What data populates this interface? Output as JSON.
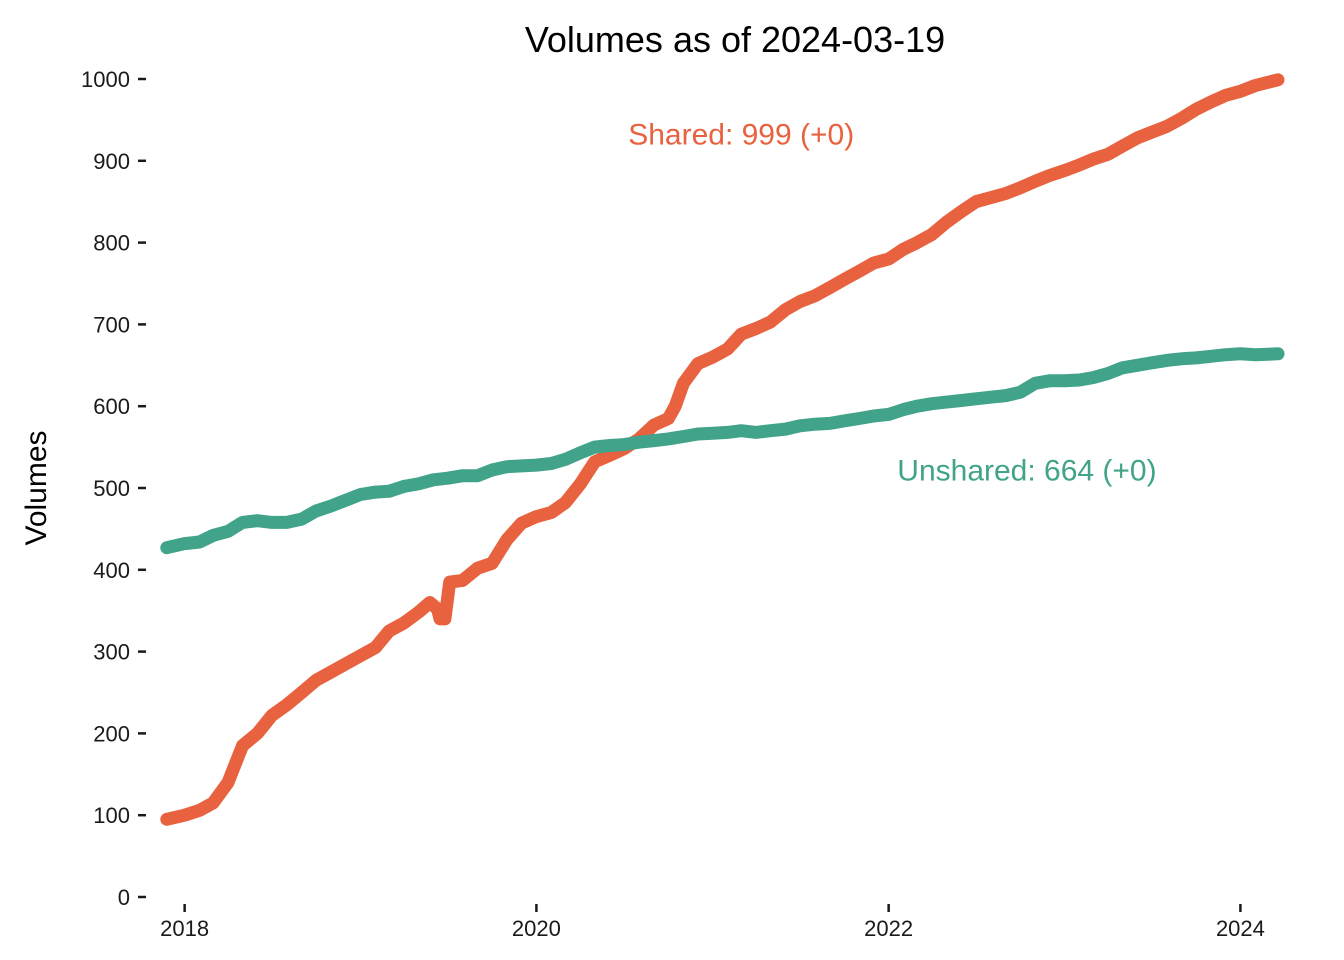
{
  "chart_data": {
    "type": "line",
    "title": "Volumes as of  2024-03-19",
    "xlabel": "",
    "ylabel": "Volumes",
    "xlim": [
      "2017-11-15",
      "2024-03-19"
    ],
    "ylim": [
      0,
      1000
    ],
    "x_ticks": [
      {
        "label": "2018",
        "date": "2018-01-01"
      },
      {
        "label": "2020",
        "date": "2020-01-01"
      },
      {
        "label": "2022",
        "date": "2022-01-01"
      },
      {
        "label": "2024",
        "date": "2024-01-01"
      }
    ],
    "y_ticks": [
      "0",
      "100",
      "200",
      "300",
      "400",
      "500",
      "600",
      "700",
      "800",
      "900",
      "1000"
    ],
    "grid": false,
    "legend": "none",
    "series": [
      {
        "name": "Shared",
        "color": "#E8623F",
        "points": [
          [
            "2017-11-25",
            95
          ],
          [
            "2018-01-01",
            100
          ],
          [
            "2018-02-01",
            106
          ],
          [
            "2018-03-01",
            115
          ],
          [
            "2018-04-01",
            140
          ],
          [
            "2018-05-01",
            185
          ],
          [
            "2018-06-01",
            200
          ],
          [
            "2018-07-01",
            222
          ],
          [
            "2018-08-01",
            235
          ],
          [
            "2018-09-01",
            250
          ],
          [
            "2018-10-01",
            265
          ],
          [
            "2018-11-01",
            275
          ],
          [
            "2018-12-01",
            285
          ],
          [
            "2019-01-01",
            295
          ],
          [
            "2019-02-01",
            305
          ],
          [
            "2019-03-01",
            325
          ],
          [
            "2019-04-01",
            335
          ],
          [
            "2019-05-01",
            348
          ],
          [
            "2019-05-25",
            360
          ],
          [
            "2019-06-10",
            352
          ],
          [
            "2019-06-15",
            340
          ],
          [
            "2019-06-25",
            340
          ],
          [
            "2019-07-05",
            385
          ],
          [
            "2019-08-01",
            387
          ],
          [
            "2019-09-01",
            402
          ],
          [
            "2019-10-01",
            408
          ],
          [
            "2019-11-01",
            437
          ],
          [
            "2019-12-01",
            457
          ],
          [
            "2020-01-01",
            465
          ],
          [
            "2020-02-01",
            470
          ],
          [
            "2020-03-01",
            482
          ],
          [
            "2020-04-01",
            505
          ],
          [
            "2020-05-01",
            532
          ],
          [
            "2020-06-01",
            540
          ],
          [
            "2020-07-01",
            548
          ],
          [
            "2020-08-01",
            560
          ],
          [
            "2020-09-01",
            577
          ],
          [
            "2020-10-01",
            585
          ],
          [
            "2020-10-15",
            600
          ],
          [
            "2020-11-01",
            628
          ],
          [
            "2020-12-01",
            652
          ],
          [
            "2021-01-01",
            660
          ],
          [
            "2021-02-01",
            670
          ],
          [
            "2021-03-01",
            688
          ],
          [
            "2021-04-01",
            695
          ],
          [
            "2021-05-01",
            703
          ],
          [
            "2021-06-01",
            718
          ],
          [
            "2021-07-01",
            728
          ],
          [
            "2021-08-01",
            735
          ],
          [
            "2021-09-01",
            745
          ],
          [
            "2021-10-01",
            755
          ],
          [
            "2021-11-01",
            765
          ],
          [
            "2021-12-01",
            775
          ],
          [
            "2022-01-01",
            780
          ],
          [
            "2022-02-01",
            792
          ],
          [
            "2022-03-01",
            800
          ],
          [
            "2022-04-01",
            810
          ],
          [
            "2022-05-01",
            825
          ],
          [
            "2022-06-01",
            838
          ],
          [
            "2022-07-01",
            850
          ],
          [
            "2022-08-01",
            855
          ],
          [
            "2022-09-01",
            860
          ],
          [
            "2022-10-01",
            867
          ],
          [
            "2022-11-01",
            875
          ],
          [
            "2022-12-01",
            882
          ],
          [
            "2023-01-01",
            888
          ],
          [
            "2023-02-01",
            895
          ],
          [
            "2023-03-01",
            902
          ],
          [
            "2023-04-01",
            908
          ],
          [
            "2023-05-01",
            918
          ],
          [
            "2023-06-01",
            928
          ],
          [
            "2023-07-01",
            935
          ],
          [
            "2023-08-01",
            942
          ],
          [
            "2023-09-01",
            952
          ],
          [
            "2023-10-01",
            963
          ],
          [
            "2023-11-01",
            972
          ],
          [
            "2023-12-01",
            980
          ],
          [
            "2024-01-01",
            985
          ],
          [
            "2024-02-01",
            992
          ],
          [
            "2024-03-19",
            999
          ]
        ]
      },
      {
        "name": "Unshared",
        "color": "#41A389",
        "points": [
          [
            "2017-11-25",
            427
          ],
          [
            "2018-01-01",
            432
          ],
          [
            "2018-02-01",
            434
          ],
          [
            "2018-03-01",
            442
          ],
          [
            "2018-04-01",
            447
          ],
          [
            "2018-05-01",
            458
          ],
          [
            "2018-06-01",
            460
          ],
          [
            "2018-07-01",
            458
          ],
          [
            "2018-08-01",
            458
          ],
          [
            "2018-09-01",
            462
          ],
          [
            "2018-10-01",
            472
          ],
          [
            "2018-11-01",
            478
          ],
          [
            "2018-12-01",
            485
          ],
          [
            "2019-01-01",
            492
          ],
          [
            "2019-02-01",
            495
          ],
          [
            "2019-03-01",
            496
          ],
          [
            "2019-04-01",
            502
          ],
          [
            "2019-05-01",
            505
          ],
          [
            "2019-06-01",
            510
          ],
          [
            "2019-07-01",
            512
          ],
          [
            "2019-08-01",
            515
          ],
          [
            "2019-09-01",
            515
          ],
          [
            "2019-10-01",
            522
          ],
          [
            "2019-11-01",
            526
          ],
          [
            "2019-12-01",
            527
          ],
          [
            "2020-01-01",
            528
          ],
          [
            "2020-02-01",
            530
          ],
          [
            "2020-03-01",
            535
          ],
          [
            "2020-04-01",
            543
          ],
          [
            "2020-05-01",
            550
          ],
          [
            "2020-06-01",
            552
          ],
          [
            "2020-07-01",
            553
          ],
          [
            "2020-08-01",
            556
          ],
          [
            "2020-09-01",
            558
          ],
          [
            "2020-10-01",
            560
          ],
          [
            "2020-11-01",
            563
          ],
          [
            "2020-12-01",
            566
          ],
          [
            "2021-01-01",
            567
          ],
          [
            "2021-02-01",
            568
          ],
          [
            "2021-03-01",
            570
          ],
          [
            "2021-04-01",
            568
          ],
          [
            "2021-05-01",
            570
          ],
          [
            "2021-06-01",
            572
          ],
          [
            "2021-07-01",
            576
          ],
          [
            "2021-08-01",
            578
          ],
          [
            "2021-09-01",
            579
          ],
          [
            "2021-10-01",
            582
          ],
          [
            "2021-11-01",
            585
          ],
          [
            "2021-12-01",
            588
          ],
          [
            "2022-01-01",
            590
          ],
          [
            "2022-02-01",
            596
          ],
          [
            "2022-03-01",
            600
          ],
          [
            "2022-04-01",
            603
          ],
          [
            "2022-05-01",
            605
          ],
          [
            "2022-06-01",
            607
          ],
          [
            "2022-07-01",
            609
          ],
          [
            "2022-08-01",
            611
          ],
          [
            "2022-09-01",
            613
          ],
          [
            "2022-10-01",
            617
          ],
          [
            "2022-11-01",
            628
          ],
          [
            "2022-12-01",
            631
          ],
          [
            "2023-01-01",
            631
          ],
          [
            "2023-02-01",
            632
          ],
          [
            "2023-03-01",
            635
          ],
          [
            "2023-04-01",
            640
          ],
          [
            "2023-05-01",
            647
          ],
          [
            "2023-06-01",
            650
          ],
          [
            "2023-07-01",
            653
          ],
          [
            "2023-08-01",
            656
          ],
          [
            "2023-09-01",
            658
          ],
          [
            "2023-10-01",
            659
          ],
          [
            "2023-11-01",
            661
          ],
          [
            "2023-12-01",
            663
          ],
          [
            "2024-01-01",
            664
          ],
          [
            "2024-02-01",
            663
          ],
          [
            "2024-03-19",
            664
          ]
        ]
      }
    ],
    "annotations": [
      {
        "text": "Shared: 999 (+0)",
        "series": "Shared",
        "x": "2021-03-01",
        "y": 920
      },
      {
        "text": "Unshared: 664 (+0)",
        "series": "Unshared",
        "x": "2022-10-15",
        "y": 509
      }
    ]
  }
}
